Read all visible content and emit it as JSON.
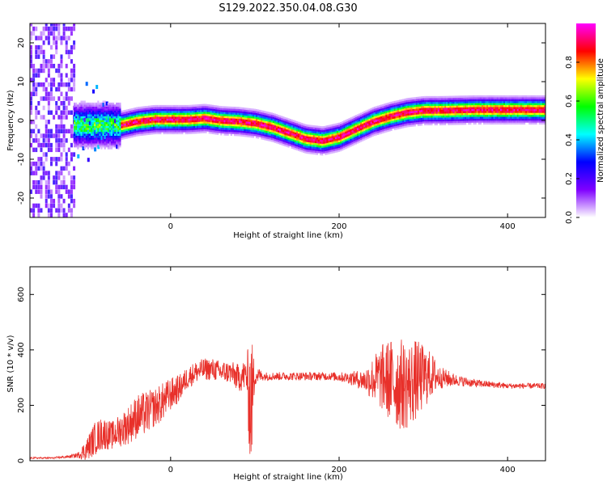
{
  "title": "S129.2022.350.04.08.G30",
  "chart_data": [
    {
      "type": "heatmap",
      "xlabel": "Height of straight line (km)",
      "ylabel": "Frequency (Hz)",
      "xlim": [
        -167,
        445
      ],
      "ylim": [
        -25,
        25
      ],
      "x_ticks": [
        0,
        200,
        400
      ],
      "y_ticks": [
        -20,
        -10,
        0,
        10,
        20
      ],
      "grid": false,
      "colormap": [
        "#ffffff",
        "#7f00ff",
        "#0000ff",
        "#00ffff",
        "#00ff00",
        "#ffff00",
        "#ff0000",
        "#ff00ff"
      ],
      "colorbar": {
        "label": "Normalized spectral amplitude",
        "ticks": [
          0.0,
          0.2,
          0.4,
          0.6,
          0.8
        ],
        "tick_labels": [
          "0.0",
          "0.2",
          "0.4",
          "0.6",
          "0.8"
        ],
        "range": [
          0,
          1
        ]
      },
      "ridge": {
        "x": [
          -60,
          -40,
          -20,
          0,
          20,
          40,
          60,
          80,
          100,
          120,
          140,
          160,
          180,
          200,
          220,
          240,
          260,
          280,
          300,
          320,
          340,
          360,
          380,
          400,
          420,
          445
        ],
        "y": [
          -1.5,
          -0.5,
          0,
          0,
          0,
          0.3,
          -0.3,
          -0.5,
          -1,
          -2,
          -3.5,
          -5,
          -5.5,
          -4.5,
          -2.5,
          -0.5,
          0.8,
          1.8,
          2.3,
          2.3,
          2.4,
          2.5,
          2.5,
          2.5,
          2.5,
          2.5
        ]
      }
    },
    {
      "type": "line",
      "xlabel": "Height of straight line (km)",
      "ylabel": "SNR (10 * v/v)",
      "xlim": [
        -167,
        445
      ],
      "ylim": [
        0,
        700
      ],
      "x_ticks": [
        0,
        200,
        400
      ],
      "y_ticks": [
        0,
        200,
        400,
        600
      ],
      "grid": false,
      "series": [
        {
          "color": "#e8302a",
          "x": [
            -167,
            -140,
            -120,
            -110,
            -100,
            -90,
            -80,
            -70,
            -60,
            -50,
            -40,
            -30,
            -20,
            -10,
            0,
            10,
            20,
            30,
            40,
            50,
            60,
            70,
            80,
            90,
            95,
            100,
            110,
            130,
            150,
            170,
            190,
            210,
            230,
            250,
            260,
            270,
            280,
            290,
            300,
            310,
            320,
            340,
            360,
            380,
            400,
            420,
            445
          ],
          "y": [
            10,
            10,
            15,
            20,
            40,
            80,
            100,
            90,
            110,
            130,
            160,
            170,
            190,
            210,
            240,
            260,
            300,
            320,
            330,
            330,
            320,
            320,
            300,
            310,
            200,
            310,
            305,
            305,
            305,
            305,
            305,
            300,
            290,
            300,
            290,
            280,
            270,
            290,
            300,
            310,
            300,
            290,
            280,
            275,
            270,
            270,
            270
          ],
          "spread": [
            3,
            3,
            5,
            10,
            40,
            60,
            60,
            50,
            60,
            70,
            80,
            80,
            70,
            70,
            60,
            50,
            40,
            40,
            40,
            40,
            40,
            40,
            50,
            60,
            280,
            40,
            15,
            15,
            15,
            15,
            15,
            20,
            40,
            120,
            150,
            170,
            160,
            150,
            120,
            80,
            40,
            20,
            15,
            12,
            10,
            10,
            10
          ]
        }
      ]
    }
  ]
}
